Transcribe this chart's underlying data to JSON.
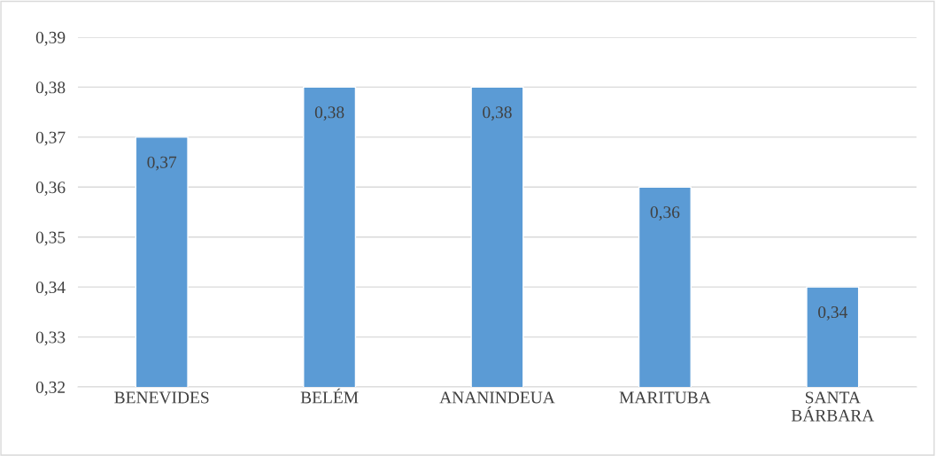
{
  "chart_data": {
    "type": "bar",
    "categories": [
      "BENEVIDES",
      "BELÉM",
      "ANANINDEUA",
      "MARITUBA",
      "SANTA\nBÁRBARA"
    ],
    "values": [
      0.37,
      0.38,
      0.38,
      0.36,
      0.34
    ],
    "value_labels": [
      "0,37",
      "0,38",
      "0,38",
      "0,36",
      "0,34"
    ],
    "color": "#5b9bd5",
    "ylim": [
      0.32,
      0.39
    ],
    "yticks": [
      {
        "value": 0.32,
        "label": "0,32"
      },
      {
        "value": 0.33,
        "label": "0,33"
      },
      {
        "value": 0.34,
        "label": "0,34"
      },
      {
        "value": 0.35,
        "label": "0,35"
      },
      {
        "value": 0.36,
        "label": "0,36"
      },
      {
        "value": 0.37,
        "label": "0,37"
      },
      {
        "value": 0.38,
        "label": "0,38"
      },
      {
        "value": 0.39,
        "label": "0,39"
      }
    ],
    "grid": "y",
    "legend": false
  }
}
